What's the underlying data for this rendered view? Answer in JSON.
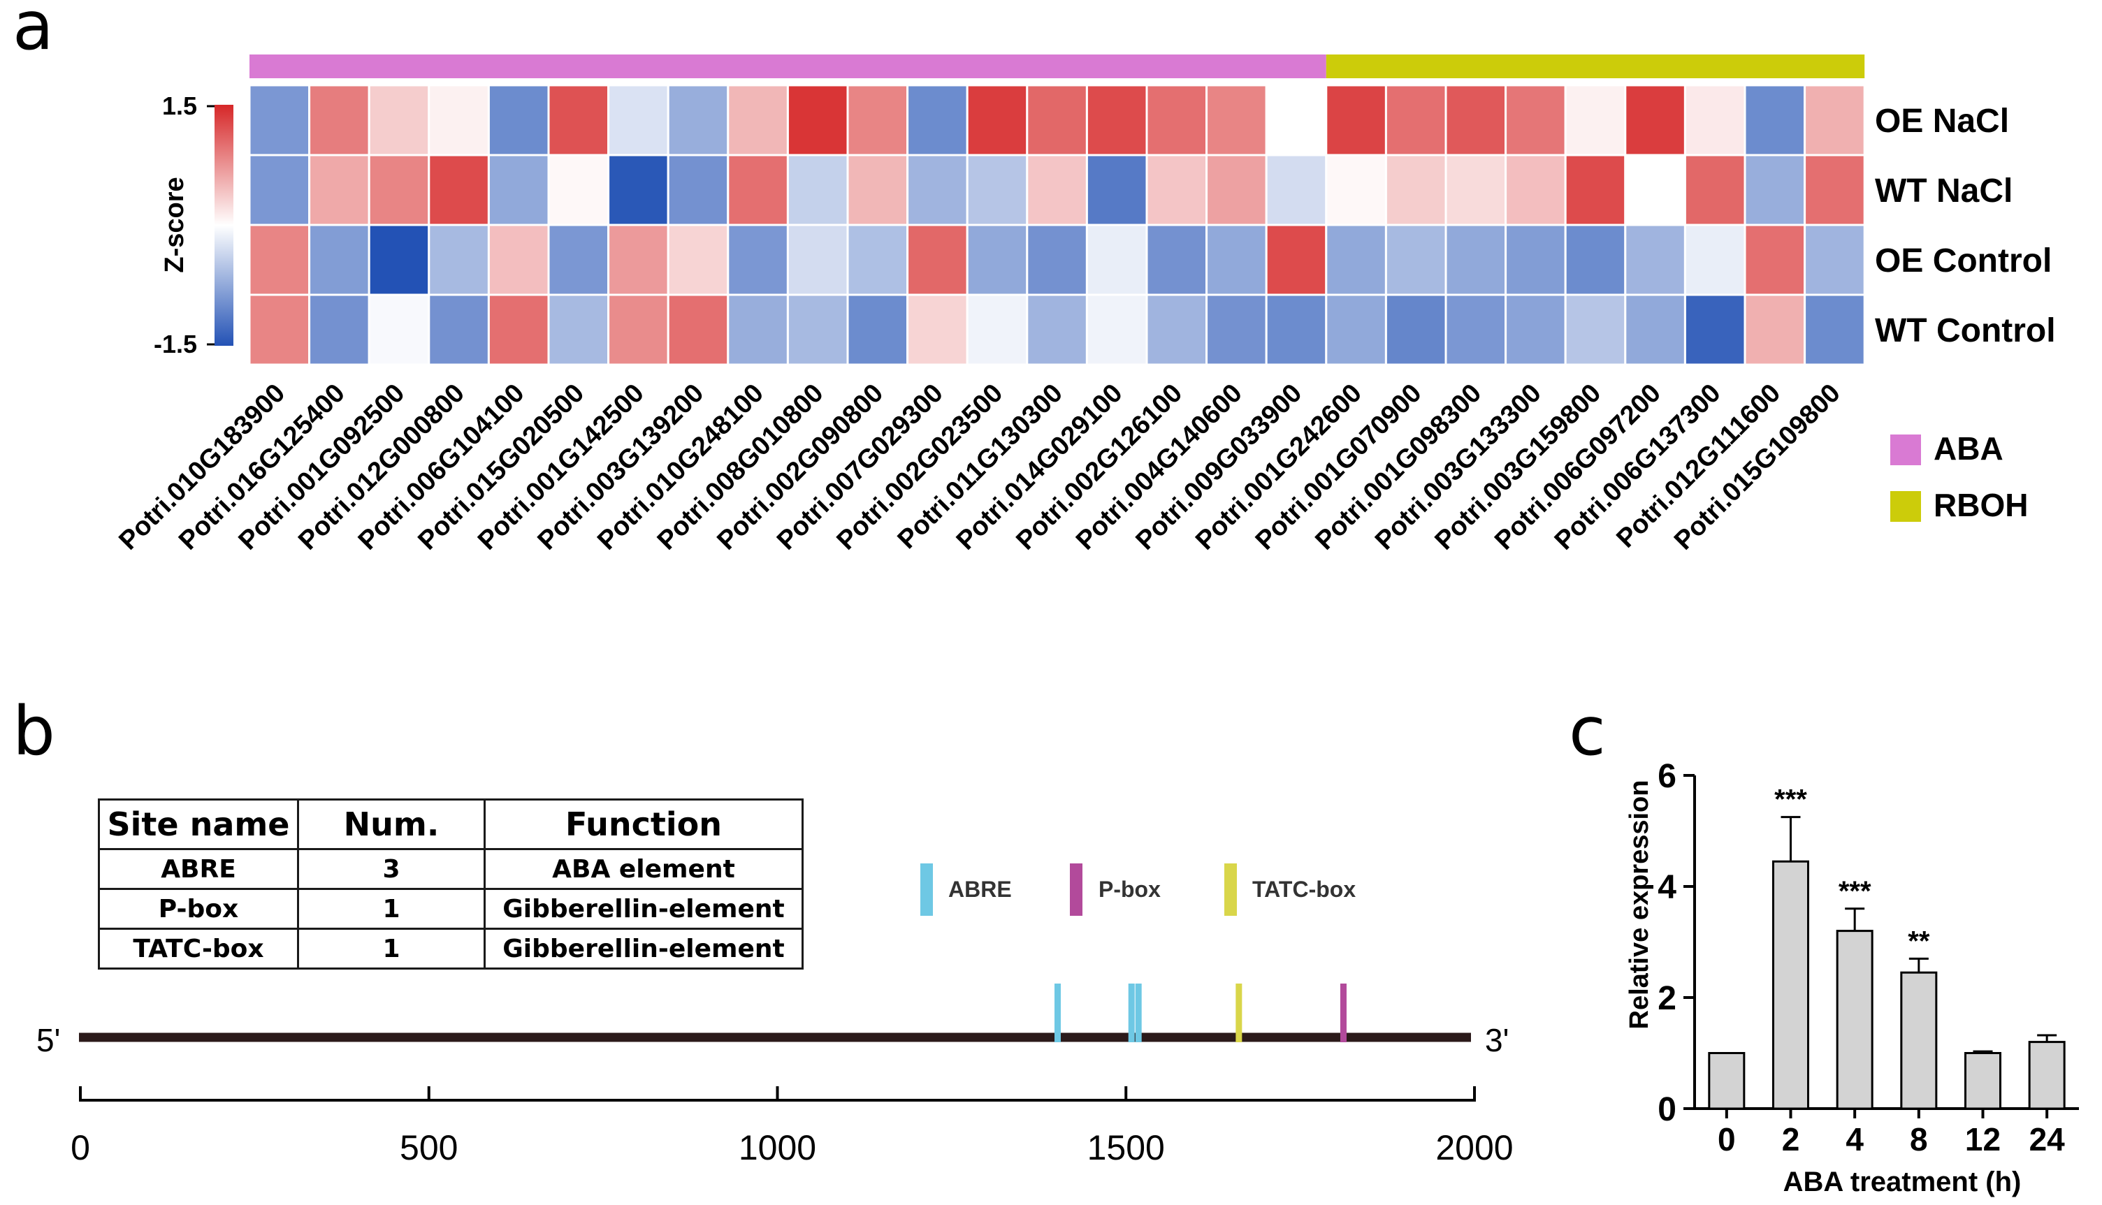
{
  "panels": {
    "a": {
      "label": "a",
      "group_bar": [
        {
          "group": "ABA",
          "color": "#d97ad3",
          "genes": 18
        },
        {
          "group": "RBOH",
          "color": "#cccc0a",
          "genes": 9
        }
      ],
      "legend": [
        {
          "label": "ABA",
          "color": "#d97ad3"
        },
        {
          "label": "RBOH",
          "color": "#cccc0a"
        }
      ]
    },
    "b": {
      "label": "b",
      "table": {
        "headers": [
          "Site name",
          "Num.",
          "Function"
        ],
        "rows": [
          [
            "ABRE",
            "3",
            "ABA element"
          ],
          [
            "P-box",
            "1",
            "Gibberellin-element"
          ],
          [
            "TATC-box",
            "1",
            "Gibberellin-element"
          ]
        ]
      },
      "legend": [
        {
          "label": "ABRE",
          "color": "#6ec8e4"
        },
        {
          "label": "P-box",
          "color": "#b24a9b"
        },
        {
          "label": "TATC-box",
          "color": "#d9d64a"
        }
      ],
      "end5": "5'",
      "end3": "3'",
      "axis_ticks": [
        "0",
        "500",
        "1000",
        "1500",
        "2000"
      ],
      "axis_range": [
        0,
        2000
      ],
      "sites": [
        {
          "type": "ABRE",
          "pos": 1402
        },
        {
          "type": "ABRE",
          "pos": 1508
        },
        {
          "type": "ABRE",
          "pos": 1518
        },
        {
          "type": "TATC-box",
          "pos": 1662
        },
        {
          "type": "P-box",
          "pos": 1812
        }
      ]
    },
    "c": {
      "label": "c"
    }
  },
  "chart_data": [
    {
      "type": "heatmap",
      "title": "",
      "rows": [
        "OE NaCl",
        "WT NaCl",
        "OE Control",
        "WT Control"
      ],
      "columns": [
        "Potri.010G183900",
        "Potri.016G125400",
        "Potri.001G092500",
        "Potri.012G000800",
        "Potri.006G104100",
        "Potri.015G020500",
        "Potri.001G142500",
        "Potri.003G139200",
        "Potri.010G248100",
        "Potri.008G010800",
        "Potri.002G090800",
        "Potri.007G029300",
        "Potri.002G023500",
        "Potri.011G130300",
        "Potri.014G029100",
        "Potri.002G126100",
        "Potri.004G140600",
        "Potri.009G033900",
        "Potri.001G242600",
        "Potri.001G070900",
        "Potri.001G098300",
        "Potri.003G133300",
        "Potri.003G159800",
        "Potri.006G097200",
        "Potri.006G137300",
        "Potri.012G111600",
        "Potri.015G109800"
      ],
      "values": [
        [
          -0.9,
          0.9,
          0.35,
          0.1,
          -1.0,
          1.2,
          -0.25,
          -0.7,
          0.5,
          1.4,
          0.85,
          -1.0,
          1.35,
          1.05,
          1.25,
          1.0,
          0.85,
          0.0,
          1.3,
          1.0,
          1.15,
          0.95,
          0.1,
          1.35,
          0.15,
          -1.0,
          0.55
        ],
        [
          -0.9,
          0.6,
          0.85,
          1.25,
          -0.75,
          0.05,
          -1.45,
          -0.95,
          1.0,
          -0.4,
          0.5,
          -0.65,
          -0.5,
          0.4,
          -1.15,
          0.4,
          0.65,
          -0.3,
          0.05,
          0.35,
          0.25,
          0.45,
          1.25,
          0.0,
          1.05,
          -0.7,
          1.0
        ],
        [
          0.85,
          -0.85,
          -1.5,
          -0.6,
          0.45,
          -0.9,
          0.7,
          0.3,
          -0.9,
          -0.3,
          -0.55,
          1.05,
          -0.75,
          -0.95,
          -0.15,
          -0.95,
          -0.75,
          1.25,
          -0.75,
          -0.6,
          -0.75,
          -0.85,
          -1.0,
          -0.65,
          -0.15,
          1.0,
          -0.65
        ],
        [
          0.85,
          -0.95,
          -0.05,
          -0.95,
          1.0,
          -0.6,
          0.8,
          1.0,
          -0.7,
          -0.6,
          -1.0,
          0.3,
          -0.1,
          -0.65,
          -0.1,
          -0.65,
          -0.95,
          -1.0,
          -0.75,
          -1.05,
          -0.9,
          -0.8,
          -0.5,
          -0.75,
          -1.35,
          0.55,
          -1.0
        ]
      ],
      "colorbar": {
        "label": "Z-score",
        "min": -1.5,
        "max": 1.5,
        "tick_labels": [
          "1.5",
          "-1.5"
        ]
      }
    },
    {
      "type": "bar",
      "title": "",
      "categories": [
        "0",
        "2",
        "4",
        "8",
        "12",
        "24"
      ],
      "values": [
        1.0,
        4.45,
        3.2,
        2.45,
        1.0,
        1.2
      ],
      "errors": [
        0.0,
        0.8,
        0.4,
        0.25,
        0.03,
        0.12
      ],
      "significance": [
        "",
        "***",
        "***",
        "**",
        "",
        ""
      ],
      "xlabel": "ABA treatment (h)",
      "ylabel": "Relative expression",
      "ylim": [
        0,
        6
      ],
      "yticks": [
        "0",
        "2",
        "4",
        "6"
      ],
      "bar_color": "#d3d3d3"
    }
  ]
}
